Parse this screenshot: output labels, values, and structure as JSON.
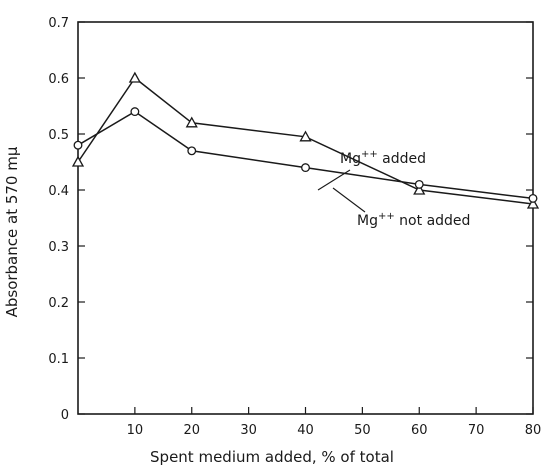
{
  "chart_data": {
    "type": "line",
    "title": "",
    "xlabel": "Spent medium added, % of total",
    "ylabel": "Absorbance at 570 mμ",
    "xlim": [
      0,
      80
    ],
    "ylim": [
      0,
      0.7
    ],
    "x_ticks": [
      10,
      20,
      30,
      40,
      50,
      60,
      70,
      80
    ],
    "x_tick_labels": [
      "10",
      "20",
      "30",
      "40",
      "50",
      "60",
      "70",
      "80"
    ],
    "y_ticks": [
      0,
      0.1,
      0.2,
      0.3,
      0.4,
      0.5,
      0.6,
      0.7
    ],
    "y_tick_labels": [
      "0",
      "0.1",
      "0.2",
      "0.3",
      "0.4",
      "0.5",
      "0.6",
      "0.7"
    ],
    "grid": false,
    "series": [
      {
        "name": "Mg++ added",
        "marker": "triangle",
        "x": [
          0,
          10,
          20,
          40,
          60,
          80
        ],
        "y": [
          0.45,
          0.6,
          0.52,
          0.495,
          0.4,
          0.375
        ]
      },
      {
        "name": "Mg++ not added",
        "marker": "circle",
        "x": [
          0,
          10,
          20,
          40,
          60,
          80
        ],
        "y": [
          0.48,
          0.54,
          0.47,
          0.44,
          0.41,
          0.385
        ]
      }
    ],
    "annotations": [
      {
        "text": "Mg",
        "superscript": "++",
        "suffix": " added",
        "series": 0
      },
      {
        "text": "Mg",
        "superscript": "++",
        "suffix": " not added",
        "series": 1
      }
    ]
  }
}
